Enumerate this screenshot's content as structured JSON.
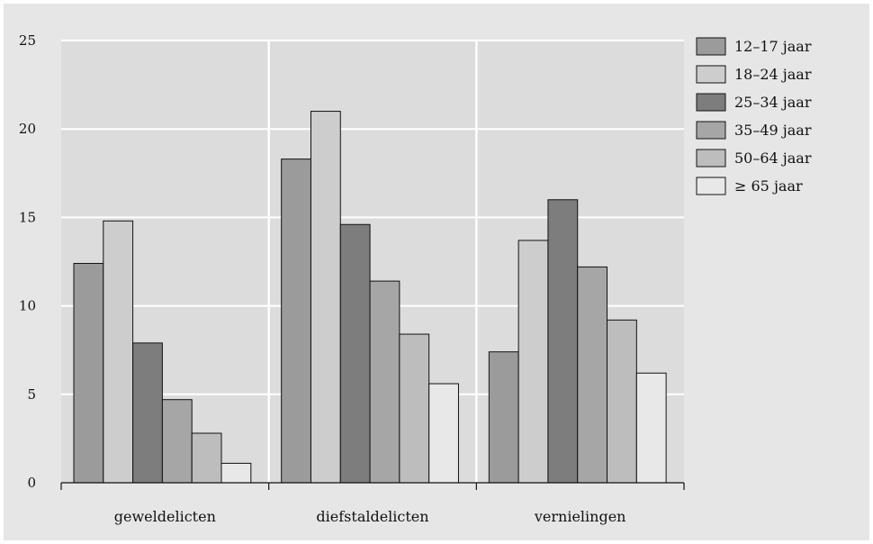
{
  "chart_data": {
    "type": "bar",
    "categories": [
      "geweldelicten",
      "diefstaldelicten",
      "vernielingen"
    ],
    "series": [
      {
        "name": "12–17 jaar",
        "values": [
          12.4,
          18.3,
          7.4
        ],
        "color": "#9b9b9b"
      },
      {
        "name": "18–24 jaar",
        "values": [
          14.8,
          21.0,
          13.7
        ],
        "color": "#cdcdcd"
      },
      {
        "name": "25–34 jaar",
        "values": [
          7.9,
          14.6,
          16.0
        ],
        "color": "#7d7d7d"
      },
      {
        "name": "35–49 jaar",
        "values": [
          4.7,
          11.4,
          12.2
        ],
        "color": "#a6a6a6"
      },
      {
        "name": "50–64 jaar",
        "values": [
          2.8,
          8.4,
          9.2
        ],
        "color": "#bdbdbd"
      },
      {
        "name": "≥ 65 jaar",
        "values": [
          1.1,
          5.6,
          6.2
        ],
        "color": "#e8e8e8"
      }
    ],
    "y_ticks": [
      "0",
      "5",
      "10",
      "15",
      "20",
      "25"
    ],
    "ylim": [
      0,
      25
    ],
    "title": "",
    "xlabel": "",
    "ylabel": "",
    "grid": "horizontal and vertical, white",
    "legend_position": "right"
  }
}
